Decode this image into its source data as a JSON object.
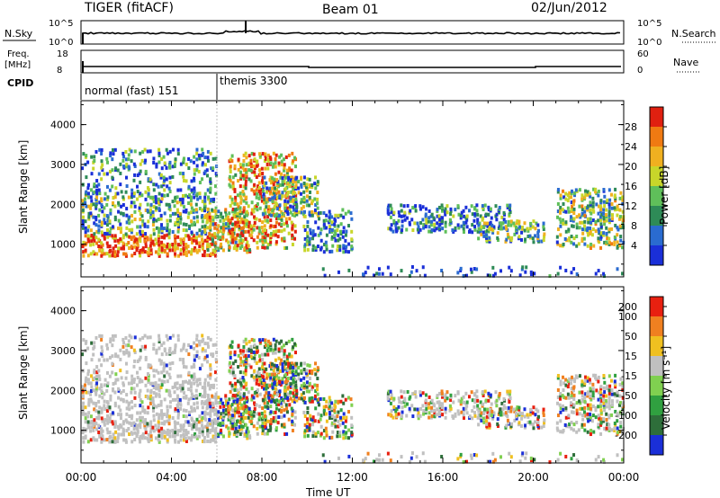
{
  "header": {
    "radar": "TIGER (fitACF)",
    "beam": "Beam 01",
    "date": "02/Jun/2012"
  },
  "noise_panel": {
    "left_label": "N.Sky",
    "left_ticks": [
      "10^5",
      "10^0"
    ],
    "right_label": "N.Search",
    "right_ticks": [
      "10^5",
      "10^0"
    ]
  },
  "freq_panel": {
    "left_label_1": "Freq.",
    "left_label_2": "[MHz]",
    "left_ticks": [
      "18",
      "8"
    ],
    "right_label": "Nave",
    "right_ticks": [
      "60",
      "0"
    ]
  },
  "cpid": {
    "label": "CPID",
    "segments": [
      {
        "name": "normal (fast) 151",
        "start_hour": 0
      },
      {
        "name": "themis 3300",
        "start_hour": 6
      }
    ]
  },
  "chart_data": [
    {
      "type": "heatmap",
      "name": "power",
      "ylabel": "Slant Range [km]",
      "yticks": [
        "1000",
        "2000",
        "3000",
        "4000"
      ],
      "ylim": [
        180,
        4600
      ],
      "colorbar_label": "Power [dB]",
      "colorbar_ticks": [
        "4",
        "8",
        "12",
        "16",
        "20",
        "24",
        "28"
      ],
      "colors": [
        "#1a2fd8",
        "#2a6bd0",
        "#2e8b57",
        "#5fbf5a",
        "#c8d62a",
        "#f0b020",
        "#f07a12",
        "#e02010"
      ]
    },
    {
      "type": "heatmap",
      "name": "velocity",
      "ylabel": "Slant Range [km]",
      "yticks": [
        "1000",
        "2000",
        "3000",
        "4000"
      ],
      "ylim": [
        180,
        4600
      ],
      "colorbar_label": "Velocity [m s⁻¹]",
      "colorbar_ticks": [
        "200",
        "100",
        "50",
        "15",
        "-15",
        "-50",
        "-100",
        "-200"
      ],
      "colors": [
        "#1a2fd8",
        "#2e6e3a",
        "#30a040",
        "#80d050",
        "#c0c0c0",
        "#f0c020",
        "#f08020",
        "#e82010"
      ]
    }
  ],
  "x_axis": {
    "label": "Time UT",
    "ticks": [
      "00:00",
      "04:00",
      "08:00",
      "12:00",
      "16:00",
      "20:00",
      "00:00"
    ],
    "range_hours": [
      0,
      24
    ]
  }
}
